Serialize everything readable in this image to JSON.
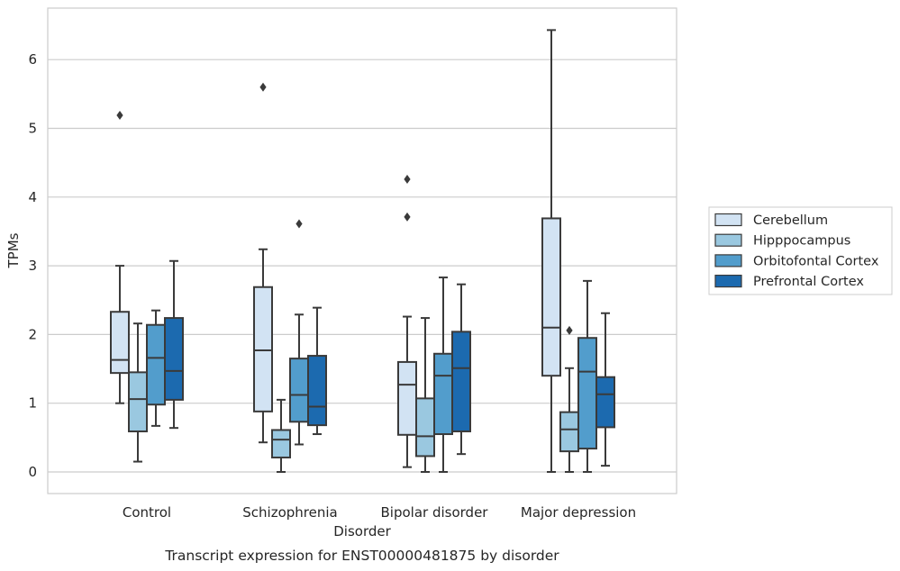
{
  "chart_data": {
    "type": "box",
    "caption": "Transcript expression for ENST00000481875 by disorder",
    "xlabel": "Disorder",
    "ylabel": "TPMs",
    "ylim": [
      -0.3,
      6.75
    ],
    "yticks": [
      "0",
      "1",
      "2",
      "3",
      "4",
      "5",
      "6"
    ],
    "grid": true,
    "legend_position": "right",
    "categories": [
      "Control",
      "Schizophrenia",
      "Bipolar disorder",
      "Major depression"
    ],
    "series": [
      {
        "name": "Cerebellum",
        "color": "#d2e3f3",
        "boxes": [
          {
            "whisker_low": 1.0,
            "q1": 1.44,
            "median": 1.63,
            "q3": 2.33,
            "whisker_high": 3.0,
            "outliers": [
              5.19
            ]
          },
          {
            "whisker_low": 0.43,
            "q1": 0.88,
            "median": 1.77,
            "q3": 2.69,
            "whisker_high": 3.24,
            "outliers": [
              5.6
            ]
          },
          {
            "whisker_low": 0.07,
            "q1": 0.54,
            "median": 1.27,
            "q3": 1.6,
            "whisker_high": 2.26,
            "outliers": [
              3.71,
              4.26
            ]
          },
          {
            "whisker_low": 0.0,
            "q1": 1.4,
            "median": 2.1,
            "q3": 3.69,
            "whisker_high": 6.43,
            "outliers": []
          }
        ]
      },
      {
        "name": "Hipppocampus",
        "color": "#9ac8e0",
        "boxes": [
          {
            "whisker_low": 0.15,
            "q1": 0.59,
            "median": 1.06,
            "q3": 1.45,
            "whisker_high": 2.16,
            "outliers": []
          },
          {
            "whisker_low": 0.0,
            "q1": 0.21,
            "median": 0.47,
            "q3": 0.61,
            "whisker_high": 1.05,
            "outliers": []
          },
          {
            "whisker_low": 0.0,
            "q1": 0.23,
            "median": 0.52,
            "q3": 1.07,
            "whisker_high": 2.24,
            "outliers": []
          },
          {
            "whisker_low": 0.0,
            "q1": 0.3,
            "median": 0.62,
            "q3": 0.87,
            "whisker_high": 1.51,
            "outliers": [
              2.06
            ]
          }
        ]
      },
      {
        "name": "Orbitofontal Cortex",
        "color": "#529dcc",
        "boxes": [
          {
            "whisker_low": 0.67,
            "q1": 0.98,
            "median": 1.66,
            "q3": 2.14,
            "whisker_high": 2.35,
            "outliers": []
          },
          {
            "whisker_low": 0.4,
            "q1": 0.73,
            "median": 1.12,
            "q3": 1.65,
            "whisker_high": 2.29,
            "outliers": [
              3.61
            ]
          },
          {
            "whisker_low": 0.0,
            "q1": 0.55,
            "median": 1.4,
            "q3": 1.72,
            "whisker_high": 2.83,
            "outliers": []
          },
          {
            "whisker_low": 0.0,
            "q1": 0.34,
            "median": 1.46,
            "q3": 1.95,
            "whisker_high": 2.78,
            "outliers": []
          }
        ]
      },
      {
        "name": "Prefrontal Cortex",
        "color": "#1c6aaf",
        "boxes": [
          {
            "whisker_low": 0.64,
            "q1": 1.05,
            "median": 1.47,
            "q3": 2.24,
            "whisker_high": 3.07,
            "outliers": []
          },
          {
            "whisker_low": 0.55,
            "q1": 0.68,
            "median": 0.95,
            "q3": 1.69,
            "whisker_high": 2.39,
            "outliers": []
          },
          {
            "whisker_low": 0.26,
            "q1": 0.59,
            "median": 1.51,
            "q3": 2.04,
            "whisker_high": 2.73,
            "outliers": []
          },
          {
            "whisker_low": 0.09,
            "q1": 0.65,
            "median": 1.13,
            "q3": 1.38,
            "whisker_high": 2.31,
            "outliers": []
          }
        ]
      }
    ]
  }
}
